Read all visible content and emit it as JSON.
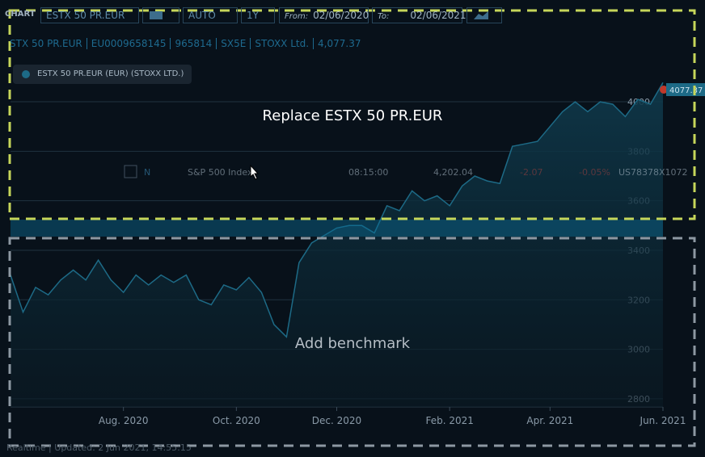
{
  "toolbar": {
    "title": "CHART",
    "instrument": "ESTX 50 PR.EUR",
    "mode": "AUTO",
    "period": "1Y",
    "from_label": "From:",
    "from": "02/06/2020",
    "to_label": "To:",
    "to": "02/06/2021"
  },
  "info": [
    "STX 50 PR.EUR",
    "EU0009658145",
    "965814",
    "SX5E",
    "STOXX Ltd.",
    "4,077.37"
  ],
  "drop_zones": {
    "replace": "Replace ESTX 50 PR.EUR",
    "add": "Add benchmark"
  },
  "drag_row": {
    "flag": "N",
    "name": "S&P 500 Index",
    "time": "08:15:00",
    "price": "4,202.04",
    "change": "-2.07",
    "change_pct": "-0.05%",
    "isin": "US78378X1072"
  },
  "footer": "Realtime | Updated: 2 Jun 2021, 14:55:15",
  "chart_data": {
    "type": "area",
    "categories": [
      null,
      null,
      null,
      null,
      null,
      null,
      null,
      null,
      null,
      "Aug. 2020",
      null,
      null,
      null,
      null,
      null,
      null,
      null,
      null,
      "Oct. 2020",
      null,
      null,
      null,
      null,
      null,
      null,
      null,
      "Dec. 2020",
      null,
      null,
      null,
      null,
      null,
      null,
      null,
      null,
      "Feb. 2021",
      null,
      null,
      null,
      null,
      null,
      null,
      null,
      "Apr. 2021",
      null,
      null,
      null,
      null,
      null,
      null,
      null,
      null,
      "Jun. 2021"
    ],
    "series": [
      {
        "name": "ESTX 50 PR.EUR (EUR) (STOXX LTD.)",
        "color": "#1d6a86",
        "values": [
          3300,
          3150,
          3250,
          3220,
          3280,
          3320,
          3280,
          3360,
          3280,
          3230,
          3300,
          3260,
          3300,
          3270,
          3300,
          3200,
          3180,
          3260,
          3240,
          3290,
          3230,
          3100,
          3050,
          3350,
          3430,
          3460,
          3490,
          3500,
          3500,
          3470,
          3580,
          3560,
          3640,
          3600,
          3620,
          3580,
          3660,
          3700,
          3680,
          3670,
          3820,
          3830,
          3840,
          3900,
          3960,
          4000,
          3960,
          4000,
          3990,
          3940,
          4010,
          3990,
          4077.37
        ]
      }
    ],
    "ylim": [
      2767,
      4085
    ],
    "yticks": [
      2800,
      3000,
      3200,
      3400,
      3600,
      3800,
      4000
    ],
    "grid": true
  }
}
